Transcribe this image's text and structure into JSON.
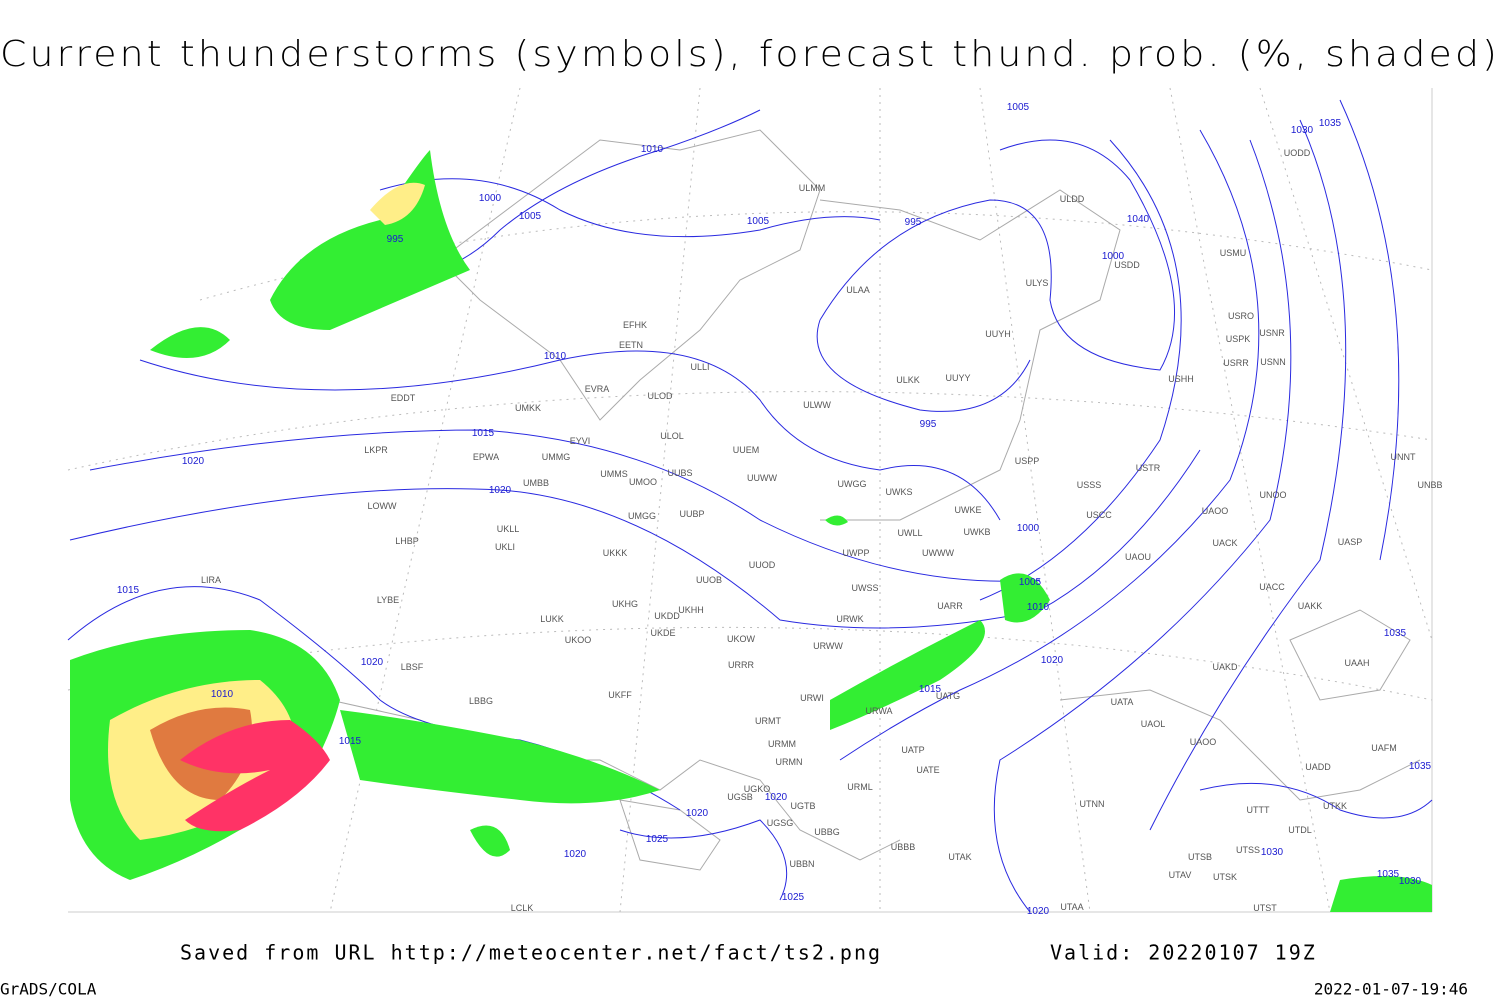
{
  "header": {
    "title": "Current thunderstorms (symbols), forecast thund. prob. (%, shaded)"
  },
  "footer": {
    "source": "Saved from URL http://meteocenter.net/fact/ts2.png",
    "valid": "Valid: 20220107 19Z",
    "software": "GrADS/COLA",
    "timestamp": "2022-01-07-19:46"
  },
  "isobar_labels": [
    1000,
    1005,
    995,
    1010,
    1005,
    995,
    1005,
    1030,
    1035,
    1040,
    1000,
    1010,
    1015,
    1020,
    1020,
    995,
    1000,
    1005,
    1010,
    1015,
    1020,
    1020,
    1015,
    1010,
    1015,
    1020,
    1020,
    1025,
    1020,
    1025,
    1035,
    1035,
    1030,
    1035,
    1030,
    1020
  ],
  "stations": [
    "ULMM",
    "ULDD",
    "ULAA",
    "USMU",
    "USDD",
    "ULYS",
    "USRO",
    "USNR",
    "USPK",
    "EFHK",
    "EETN",
    "UUYH",
    "USRR",
    "USNN",
    "ULLI",
    "ULKK",
    "UUYY",
    "USHH",
    "EVRA",
    "EDDT",
    "ULOD",
    "UMKK",
    "ULWW",
    "EYVI",
    "ULOL",
    "UUEM",
    "LKPR",
    "EPWA",
    "UMMG",
    "USPP",
    "USTR",
    "UMMS",
    "UMOO",
    "UUBS",
    "UUWW",
    "UWGG",
    "USSS",
    "UMBB",
    "UWKS",
    "UNOO",
    "LOWW",
    "UMGG",
    "UUBP",
    "UWKE",
    "USCC",
    "UAOO",
    "UKLL",
    "UWLL",
    "UWKB",
    "UACK",
    "LHBP",
    "UKLI",
    "UWPP",
    "UWWW",
    "UASP",
    "UKKK",
    "UUOD",
    "UAOU",
    "LIRA",
    "UUOB",
    "UWSS",
    "UACC",
    "LYBE",
    "UKHG",
    "UKHH",
    "UARR",
    "UAKK",
    "LUKK",
    "UKDD",
    "URWK",
    "UKOO",
    "UKDE",
    "UKOW",
    "URWW",
    "URRR",
    "LBSF",
    "UAKD",
    "UAAH",
    "UKFF",
    "LBBG",
    "URWI",
    "UATG",
    "UATA",
    "URMT",
    "URWA",
    "UAOL",
    "URMM",
    "UAOO",
    "UATP",
    "UAFM",
    "URMN",
    "UATE",
    "UADD",
    "UGKO",
    "URML",
    "UGSB",
    "UGTB",
    "UTNN",
    "UTTT",
    "UTKK",
    "UGSG",
    "UBBG",
    "UTDL",
    "UBBB",
    "UTAK",
    "UTSS",
    "UTSB",
    "UBBN",
    "UTAV",
    "UTSK",
    "LCLK",
    "UTAA",
    "UTST",
    "UODD",
    "UNNT",
    "UNBB"
  ]
}
